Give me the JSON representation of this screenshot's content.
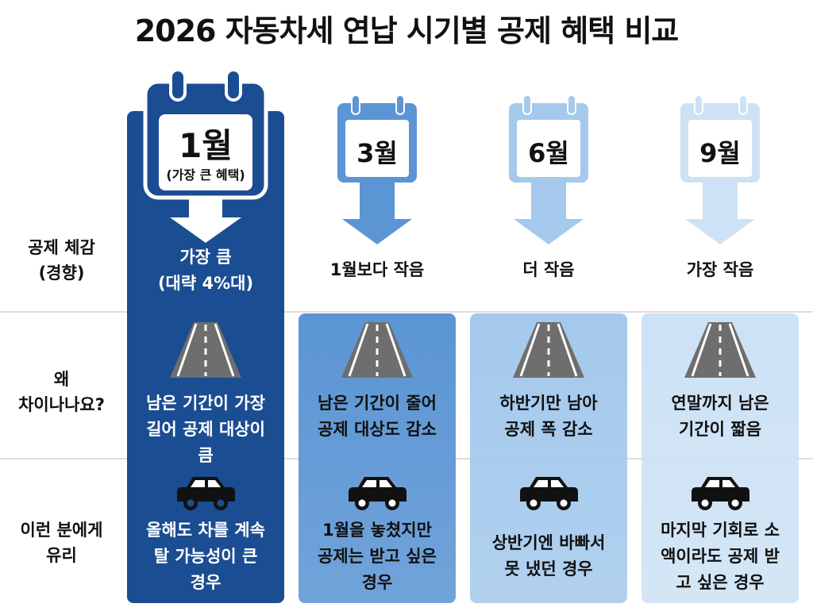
{
  "title": "2026 자동차세 연납 시기별 공제 혜택 비교",
  "row_labels": [
    [
      "공제 체감",
      "(경향)"
    ],
    [
      "왜",
      "차이나나요?"
    ],
    [
      "이런 분에게",
      "유리"
    ]
  ],
  "columns": [
    {
      "month": "1월",
      "sub": "(가장 큰 혜택)",
      "benefit": [
        "가장 큼",
        "(대략 4%대)"
      ],
      "reason": [
        "남은 기간이 가장",
        "길어 공제 대상이",
        "큼"
      ],
      "favored": [
        "올해도 차를 계속",
        "탈 가능성이 큰",
        "경우"
      ],
      "color": "#1b4d92",
      "text_color": "#ffffff"
    },
    {
      "month": "3월",
      "benefit": [
        "1월보다 작음"
      ],
      "reason": [
        "남은 기간이 줄어",
        "공제 대상도 감소"
      ],
      "favored": [
        "1월을 놓쳤지만",
        "공제는 받고 싶은",
        "경우"
      ],
      "color": "#5b95d4",
      "text_color": "#111111"
    },
    {
      "month": "6월",
      "benefit": [
        "더 작음"
      ],
      "reason": [
        "하반기만 남아",
        "공제 폭 감소"
      ],
      "favored": [
        "상반기엔 바빠서",
        "못 냈던 경우"
      ],
      "color": "#a4c9ec",
      "text_color": "#111111"
    },
    {
      "month": "9월",
      "benefit": [
        "가장 작음"
      ],
      "reason": [
        "연말까지 남은",
        "기간이 짧음"
      ],
      "favored": [
        "마지막 기회로 소",
        "액이라도 공제 받",
        "고 싶은 경우"
      ],
      "color": "#cde2f5",
      "text_color": "#111111"
    }
  ],
  "icons": {
    "calendar": "calendar-icon",
    "arrow": "arrow-down-icon",
    "road": "road-icon",
    "car": "car-icon"
  }
}
